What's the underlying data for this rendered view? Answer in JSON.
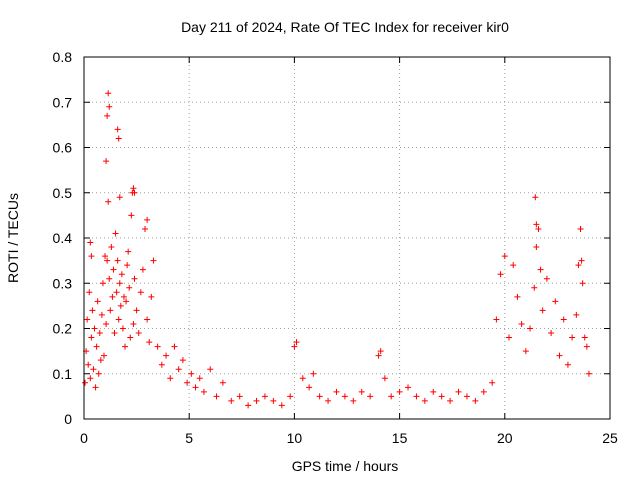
{
  "chart_data": {
    "type": "scatter",
    "title": "Day 211 of 2024, Rate Of TEC Index for receiver kir0",
    "xlabel": "GPS time / hours",
    "ylabel": "ROTI / TECUs",
    "xlim": [
      0,
      25
    ],
    "ylim": [
      0,
      0.8
    ],
    "xticks": [
      0,
      5,
      10,
      15,
      20,
      25
    ],
    "xtick_labels": [
      "0",
      "5",
      "10",
      "15",
      "20",
      "25"
    ],
    "yticks": [
      0,
      0.1,
      0.2,
      0.3,
      0.4,
      0.5,
      0.6,
      0.7,
      0.8
    ],
    "ytick_labels": [
      "0",
      "0.1",
      "0.2",
      "0.3",
      "0.4",
      "0.5",
      "0.6",
      "0.7",
      "0.8"
    ],
    "grid": true,
    "marker": "+",
    "series": [
      {
        "name": "ROTI",
        "color": "#ff0000",
        "x": [
          0.05,
          0.1,
          0.15,
          0.2,
          0.25,
          0.3,
          0.35,
          0.4,
          0.45,
          0.5,
          0.55,
          0.6,
          0.65,
          0.7,
          0.75,
          0.8,
          0.85,
          0.9,
          0.95,
          1.0,
          1.05,
          1.1,
          1.15,
          1.2,
          1.25,
          1.3,
          1.35,
          1.4,
          1.45,
          1.5,
          1.55,
          1.6,
          1.65,
          1.7,
          1.75,
          1.8,
          1.85,
          1.9,
          1.95,
          2.0,
          2.05,
          2.1,
          2.15,
          2.2,
          2.25,
          2.3,
          2.35,
          2.4,
          2.5,
          2.6,
          2.7,
          2.8,
          2.9,
          3.0,
          3.1,
          3.2,
          3.3,
          3.5,
          3.7,
          3.9,
          4.1,
          4.3,
          4.5,
          4.7,
          4.9,
          5.1,
          5.3,
          5.5,
          5.7,
          6.0,
          6.3,
          6.6,
          7.0,
          7.4,
          7.8,
          8.2,
          8.6,
          9.0,
          9.4,
          9.8,
          10.0,
          10.1,
          10.4,
          10.7,
          10.9,
          11.2,
          11.6,
          12.0,
          12.4,
          12.8,
          13.2,
          13.6,
          14.0,
          14.1,
          14.3,
          14.6,
          15.0,
          15.4,
          15.8,
          16.2,
          16.6,
          17.0,
          17.4,
          17.8,
          18.2,
          18.6,
          19.0,
          19.4,
          19.6,
          19.8,
          20.0,
          20.2,
          20.4,
          20.6,
          20.8,
          21.0,
          21.2,
          21.4,
          21.5,
          21.6,
          21.7,
          21.8,
          22.0,
          22.2,
          22.4,
          22.6,
          22.8,
          23.0,
          23.2,
          23.4,
          23.5,
          23.6,
          23.7,
          23.8,
          23.9,
          24.0,
          1.15,
          1.2,
          1.6,
          1.65,
          1.1,
          1.05,
          2.35,
          2.4,
          0.3,
          0.35,
          1.7,
          3.0,
          21.45,
          21.5,
          23.6,
          23.65
        ],
        "y": [
          0.08,
          0.15,
          0.22,
          0.12,
          0.28,
          0.09,
          0.18,
          0.24,
          0.11,
          0.2,
          0.07,
          0.16,
          0.26,
          0.1,
          0.19,
          0.13,
          0.23,
          0.3,
          0.14,
          0.36,
          0.21,
          0.35,
          0.48,
          0.31,
          0.24,
          0.38,
          0.27,
          0.33,
          0.19,
          0.41,
          0.28,
          0.35,
          0.22,
          0.3,
          0.25,
          0.32,
          0.2,
          0.27,
          0.16,
          0.26,
          0.34,
          0.37,
          0.29,
          0.18,
          0.45,
          0.5,
          0.21,
          0.31,
          0.24,
          0.19,
          0.28,
          0.33,
          0.42,
          0.22,
          0.17,
          0.27,
          0.35,
          0.16,
          0.12,
          0.14,
          0.09,
          0.16,
          0.11,
          0.13,
          0.08,
          0.1,
          0.07,
          0.09,
          0.06,
          0.11,
          0.05,
          0.08,
          0.04,
          0.05,
          0.03,
          0.04,
          0.05,
          0.04,
          0.03,
          0.05,
          0.16,
          0.17,
          0.09,
          0.07,
          0.1,
          0.05,
          0.04,
          0.06,
          0.05,
          0.04,
          0.06,
          0.05,
          0.14,
          0.15,
          0.09,
          0.05,
          0.06,
          0.07,
          0.05,
          0.04,
          0.06,
          0.05,
          0.04,
          0.06,
          0.05,
          0.04,
          0.06,
          0.08,
          0.22,
          0.32,
          0.36,
          0.18,
          0.34,
          0.27,
          0.21,
          0.15,
          0.2,
          0.29,
          0.38,
          0.42,
          0.33,
          0.24,
          0.31,
          0.19,
          0.26,
          0.14,
          0.22,
          0.12,
          0.18,
          0.23,
          0.34,
          0.42,
          0.3,
          0.18,
          0.16,
          0.1,
          0.72,
          0.69,
          0.64,
          0.62,
          0.67,
          0.57,
          0.51,
          0.5,
          0.39,
          0.36,
          0.49,
          0.44,
          0.49,
          0.43,
          0.42,
          0.35
        ]
      }
    ]
  }
}
